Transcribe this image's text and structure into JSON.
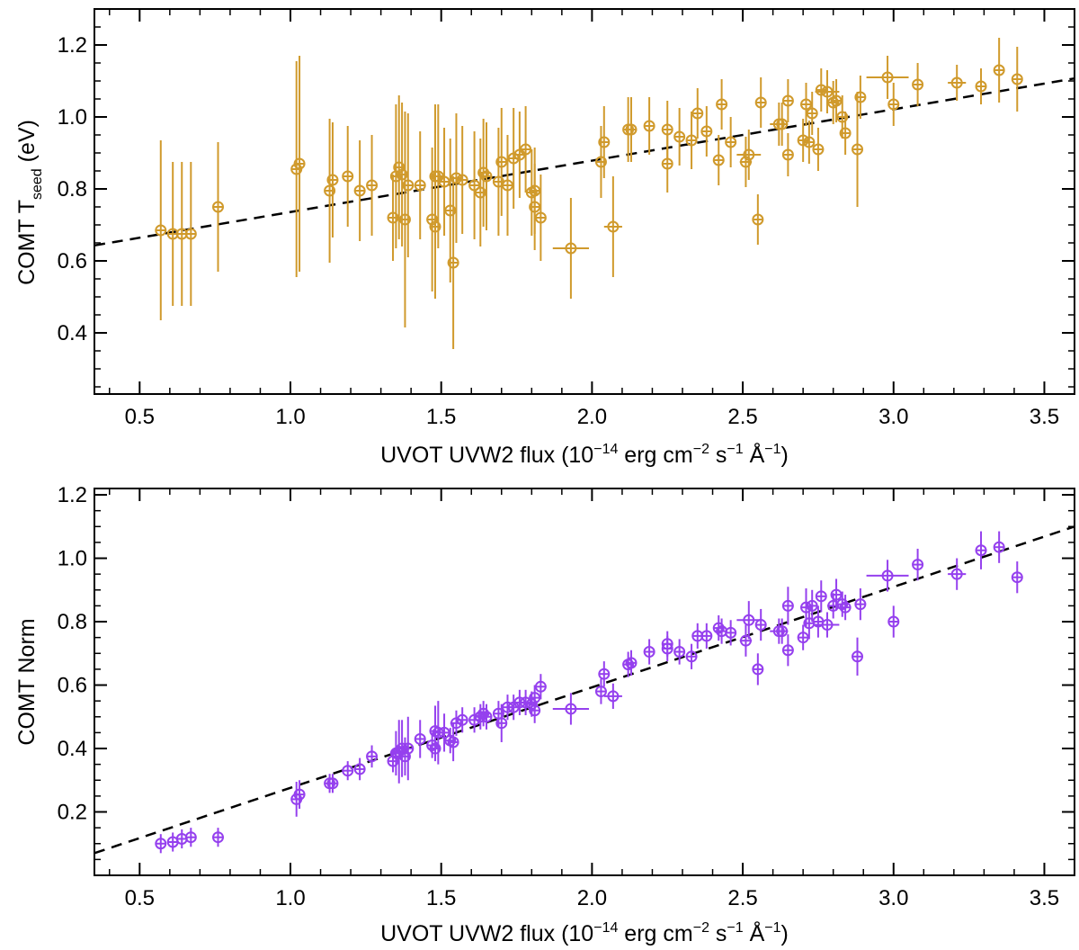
{
  "chart_data": [
    {
      "type": "scatter",
      "xlabel": "UVOT UVW2 flux (10",
      "xlabel_exp1": "−14",
      "xlabel_mid1": " erg cm",
      "xlabel_exp2": "−2",
      "xlabel_mid2": " s",
      "xlabel_exp3": "−1",
      "xlabel_mid3": " Å",
      "xlabel_exp4": "−1",
      "xlabel_end": ")",
      "ylabel": "COMT  T",
      "ylabel_sub": "seed",
      "ylabel_end": "  (eV)",
      "xlim": [
        0.35,
        3.6
      ],
      "ylim": [
        0.23,
        1.3
      ],
      "xticks": [
        0.5,
        1.0,
        1.5,
        2.0,
        2.5,
        3.0,
        3.5
      ],
      "xtick_labels": [
        "0.5",
        "1.0",
        "1.5",
        "2.0",
        "2.5",
        "3.0",
        "3.5"
      ],
      "yticks": [
        0.4,
        0.6,
        0.8,
        1.0,
        1.2
      ],
      "ytick_labels": [
        "0.4",
        "0.6",
        "0.8",
        "1.0",
        "1.2"
      ],
      "color": "#d09a2c",
      "fit_line": {
        "x": [
          0.35,
          3.6
        ],
        "y": [
          0.643,
          1.107
        ]
      },
      "series": [
        {
          "name": "COMT Tseed",
          "x": [
            0.57,
            0.61,
            0.64,
            0.67,
            0.76,
            1.02,
            1.03,
            1.13,
            1.14,
            1.19,
            1.23,
            1.27,
            1.34,
            1.35,
            1.36,
            1.37,
            1.38,
            1.39,
            1.43,
            1.47,
            1.48,
            1.48,
            1.49,
            1.51,
            1.53,
            1.54,
            1.55,
            1.57,
            1.61,
            1.63,
            1.64,
            1.65,
            1.69,
            1.7,
            1.72,
            1.74,
            1.76,
            1.78,
            1.8,
            1.81,
            1.81,
            1.83,
            1.93,
            2.03,
            2.04,
            2.07,
            2.12,
            2.13,
            2.19,
            2.25,
            2.25,
            2.29,
            2.33,
            2.35,
            2.38,
            2.42,
            2.43,
            2.46,
            2.51,
            2.52,
            2.55,
            2.56,
            2.62,
            2.63,
            2.65,
            2.65,
            2.7,
            2.71,
            2.72,
            2.73,
            2.75,
            2.76,
            2.78,
            2.8,
            2.81,
            2.83,
            2.84,
            2.88,
            2.89,
            2.98,
            3.0,
            3.08,
            3.21,
            3.29,
            3.35,
            3.41
          ],
          "y": [
            0.685,
            0.675,
            0.675,
            0.675,
            0.75,
            0.855,
            0.87,
            0.795,
            0.825,
            0.835,
            0.795,
            0.81,
            0.72,
            0.835,
            0.86,
            0.84,
            0.715,
            0.81,
            0.81,
            0.715,
            0.695,
            0.835,
            0.835,
            0.82,
            0.74,
            0.595,
            0.83,
            0.825,
            0.81,
            0.79,
            0.845,
            0.835,
            0.82,
            0.875,
            0.81,
            0.885,
            0.895,
            0.91,
            0.79,
            0.75,
            0.795,
            0.72,
            0.635,
            0.875,
            0.93,
            0.695,
            0.965,
            0.965,
            0.975,
            0.87,
            0.965,
            0.945,
            0.935,
            1.01,
            0.96,
            0.88,
            1.035,
            0.93,
            0.875,
            0.895,
            0.715,
            1.04,
            0.98,
            0.98,
            1.045,
            0.895,
            0.935,
            1.035,
            0.93,
            1.01,
            0.91,
            1.075,
            1.07,
            1.04,
            1.045,
            1.0,
            0.955,
            0.91,
            1.055,
            1.11,
            1.035,
            1.09,
            1.095,
            1.085,
            1.13,
            1.105
          ],
          "yerr": [
            0.25,
            0.2,
            0.2,
            0.2,
            0.18,
            0.3,
            0.3,
            0.2,
            0.16,
            0.14,
            0.14,
            0.14,
            0.12,
            0.2,
            0.2,
            0.2,
            0.3,
            0.2,
            0.15,
            0.2,
            0.2,
            0.2,
            0.2,
            0.15,
            0.2,
            0.24,
            0.18,
            0.15,
            0.15,
            0.15,
            0.15,
            0.15,
            0.15,
            0.15,
            0.14,
            0.14,
            0.12,
            0.12,
            0.12,
            0.12,
            0.12,
            0.12,
            0.14,
            0.1,
            0.1,
            0.14,
            0.09,
            0.09,
            0.08,
            0.08,
            0.08,
            0.08,
            0.08,
            0.07,
            0.07,
            0.07,
            0.07,
            0.07,
            0.07,
            0.07,
            0.07,
            0.07,
            0.06,
            0.06,
            0.06,
            0.06,
            0.06,
            0.06,
            0.06,
            0.06,
            0.06,
            0.06,
            0.06,
            0.06,
            0.06,
            0.06,
            0.06,
            0.16,
            0.06,
            0.06,
            0.06,
            0.06,
            0.05,
            0.05,
            0.09,
            0.09
          ],
          "xerr": [
            0,
            0,
            0,
            0,
            0,
            0,
            0,
            0,
            0,
            0,
            0,
            0,
            0,
            0,
            0,
            0,
            0,
            0,
            0,
            0,
            0,
            0,
            0,
            0,
            0,
            0,
            0.02,
            0,
            0,
            0,
            0,
            0,
            0,
            0,
            0,
            0,
            0,
            0,
            0,
            0,
            0,
            0,
            0.06,
            0,
            0,
            0.03,
            0,
            0,
            0,
            0,
            0,
            0,
            0,
            0,
            0,
            0,
            0,
            0,
            0.02,
            0.04,
            0,
            0,
            0.03,
            0,
            0,
            0,
            0,
            0,
            0,
            0,
            0,
            0,
            0.04,
            0.02,
            0,
            0,
            0,
            0,
            0,
            0.07,
            0,
            0,
            0.03,
            0,
            0,
            0
          ]
        }
      ]
    },
    {
      "type": "scatter",
      "xlabel": "UVOT UVW2 flux (10",
      "xlabel_exp1": "−14",
      "xlabel_mid1": " erg cm",
      "xlabel_exp2": "−2",
      "xlabel_mid2": " s",
      "xlabel_exp3": "−1",
      "xlabel_mid3": " Å",
      "xlabel_exp4": "−1",
      "xlabel_end": ")",
      "ylabel": "COMT  Norm",
      "xlim": [
        0.35,
        3.6
      ],
      "ylim": [
        0.0,
        1.22
      ],
      "xticks": [
        0.5,
        1.0,
        1.5,
        2.0,
        2.5,
        3.0,
        3.5
      ],
      "xtick_labels": [
        "0.5",
        "1.0",
        "1.5",
        "2.0",
        "2.5",
        "3.0",
        "3.5"
      ],
      "yticks": [
        0.2,
        0.4,
        0.6,
        0.8,
        1.0,
        1.2
      ],
      "ytick_labels": [
        "0.2",
        "0.4",
        "0.6",
        "0.8",
        "1.0",
        "1.2"
      ],
      "color": "#9540ee",
      "fit_line": {
        "x": [
          0.35,
          3.6
        ],
        "y": [
          0.07,
          1.1
        ]
      },
      "series": [
        {
          "name": "COMT Norm",
          "x": [
            0.57,
            0.61,
            0.64,
            0.67,
            0.76,
            1.02,
            1.03,
            1.13,
            1.14,
            1.19,
            1.23,
            1.27,
            1.34,
            1.35,
            1.36,
            1.37,
            1.38,
            1.39,
            1.43,
            1.47,
            1.48,
            1.48,
            1.49,
            1.51,
            1.53,
            1.54,
            1.55,
            1.57,
            1.61,
            1.63,
            1.64,
            1.65,
            1.69,
            1.7,
            1.72,
            1.74,
            1.76,
            1.78,
            1.8,
            1.81,
            1.81,
            1.83,
            1.93,
            2.03,
            2.04,
            2.07,
            2.12,
            2.13,
            2.19,
            2.25,
            2.25,
            2.29,
            2.33,
            2.35,
            2.38,
            2.42,
            2.43,
            2.46,
            2.51,
            2.52,
            2.55,
            2.56,
            2.62,
            2.63,
            2.65,
            2.65,
            2.7,
            2.71,
            2.72,
            2.73,
            2.75,
            2.76,
            2.78,
            2.8,
            2.81,
            2.83,
            2.84,
            2.88,
            2.89,
            2.98,
            3.0,
            3.08,
            3.21,
            3.29,
            3.35,
            3.41
          ],
          "y": [
            0.1,
            0.105,
            0.115,
            0.12,
            0.12,
            0.24,
            0.255,
            0.29,
            0.29,
            0.33,
            0.335,
            0.375,
            0.36,
            0.385,
            0.39,
            0.4,
            0.375,
            0.4,
            0.43,
            0.41,
            0.4,
            0.455,
            0.45,
            0.45,
            0.425,
            0.42,
            0.48,
            0.49,
            0.49,
            0.5,
            0.51,
            0.5,
            0.51,
            0.48,
            0.53,
            0.53,
            0.545,
            0.545,
            0.54,
            0.56,
            0.52,
            0.595,
            0.525,
            0.58,
            0.635,
            0.565,
            0.665,
            0.67,
            0.705,
            0.715,
            0.73,
            0.705,
            0.69,
            0.755,
            0.755,
            0.78,
            0.77,
            0.765,
            0.74,
            0.805,
            0.65,
            0.79,
            0.77,
            0.77,
            0.85,
            0.71,
            0.75,
            0.845,
            0.795,
            0.85,
            0.8,
            0.88,
            0.79,
            0.85,
            0.885,
            0.855,
            0.845,
            0.69,
            0.855,
            0.945,
            0.8,
            0.98,
            0.95,
            1.025,
            1.035,
            0.94
          ],
          "yerr": [
            0.03,
            0.03,
            0.03,
            0.03,
            0.03,
            0.055,
            0.045,
            0.03,
            0.03,
            0.03,
            0.035,
            0.035,
            0.035,
            0.07,
            0.1,
            0.09,
            0.06,
            0.1,
            0.06,
            0.04,
            0.04,
            0.08,
            0.1,
            0.06,
            0.04,
            0.06,
            0.04,
            0.04,
            0.04,
            0.04,
            0.04,
            0.04,
            0.04,
            0.06,
            0.04,
            0.04,
            0.04,
            0.04,
            0.04,
            0.04,
            0.04,
            0.04,
            0.05,
            0.04,
            0.04,
            0.04,
            0.04,
            0.04,
            0.04,
            0.04,
            0.04,
            0.04,
            0.04,
            0.04,
            0.04,
            0.04,
            0.04,
            0.04,
            0.05,
            0.06,
            0.05,
            0.05,
            0.04,
            0.04,
            0.06,
            0.05,
            0.04,
            0.06,
            0.05,
            0.05,
            0.05,
            0.05,
            0.04,
            0.04,
            0.05,
            0.04,
            0.04,
            0.06,
            0.05,
            0.05,
            0.05,
            0.05,
            0.05,
            0.06,
            0.05,
            0.05
          ],
          "xerr": [
            0,
            0,
            0,
            0,
            0,
            0,
            0,
            0,
            0,
            0,
            0,
            0,
            0,
            0,
            0,
            0,
            0,
            0,
            0,
            0,
            0,
            0,
            0,
            0,
            0,
            0,
            0.02,
            0,
            0,
            0,
            0,
            0,
            0,
            0,
            0,
            0,
            0,
            0,
            0,
            0,
            0,
            0,
            0.06,
            0,
            0,
            0.03,
            0,
            0,
            0,
            0,
            0,
            0,
            0,
            0,
            0,
            0,
            0,
            0,
            0.02,
            0.04,
            0,
            0,
            0.03,
            0,
            0,
            0,
            0,
            0,
            0,
            0,
            0,
            0,
            0.04,
            0.02,
            0,
            0,
            0,
            0,
            0,
            0.07,
            0,
            0,
            0.03,
            0,
            0,
            0
          ]
        }
      ]
    }
  ]
}
